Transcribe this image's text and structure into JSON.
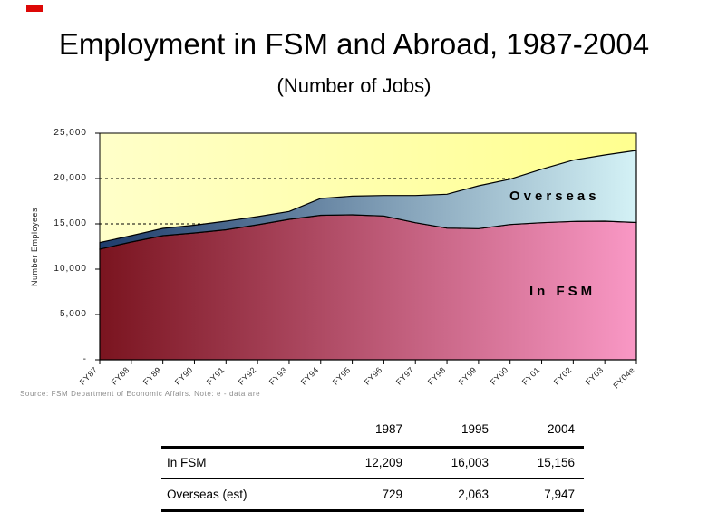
{
  "slide": {
    "title": "Employment in FSM and Abroad, 1987-2004",
    "subtitle": "(Number of Jobs)",
    "source_note": "Source: FSM Department of Economic Affairs.   Note: e - data are"
  },
  "chart_data": {
    "type": "area",
    "stacked": true,
    "title": "",
    "xlabel": "",
    "ylabel": "Number Employees",
    "ylim": [
      0,
      25000
    ],
    "yticks": [
      0,
      5000,
      10000,
      15000,
      20000,
      25000
    ],
    "ytick_labels": [
      "-",
      "5,000",
      "10,000",
      "15,000",
      "20,000",
      "25,000"
    ],
    "dashed_gridlines_at": [
      15000,
      20000
    ],
    "categories": [
      "FY87",
      "FY88",
      "FY89",
      "FY90",
      "FY91",
      "FY92",
      "FY93",
      "FY94",
      "FY95",
      "FY96",
      "FY97",
      "FY98",
      "FY99",
      "FY00",
      "FY01",
      "FY02",
      "FY03",
      "FY04e"
    ],
    "series": [
      {
        "name": "In FSM",
        "label": "In FSM",
        "values": [
          12209,
          13000,
          13700,
          14000,
          14350,
          14900,
          15500,
          15950,
          16003,
          15870,
          15130,
          14530,
          14470,
          14930,
          15130,
          15270,
          15300,
          15156
        ],
        "gradient": [
          "#7A141F",
          "#F998C5"
        ]
      },
      {
        "name": "Overseas",
        "label": "Overseas",
        "values": [
          729,
          700,
          800,
          850,
          950,
          900,
          870,
          1850,
          2063,
          2260,
          3000,
          3740,
          4730,
          5000,
          5900,
          6760,
          7300,
          7947
        ],
        "gradient": [
          "#1E3C6B",
          "#D4F2F6"
        ]
      }
    ],
    "plot_bg_gradient": [
      "#FFFFC9",
      "#FFFF8F"
    ],
    "outline_color": "#000000",
    "grid": "horizontal-dashed",
    "legend_position": "labels-inside-plot"
  },
  "table": {
    "columns": [
      "",
      "1987",
      "1995",
      "2004"
    ],
    "rows": [
      {
        "label": "In FSM",
        "values": [
          "12,209",
          "16,003",
          "15,156"
        ]
      },
      {
        "label": "Overseas (est)",
        "values": [
          "729",
          "2,063",
          "7,947"
        ]
      }
    ]
  },
  "decor": {
    "red_mark_color": "#DD0806"
  }
}
